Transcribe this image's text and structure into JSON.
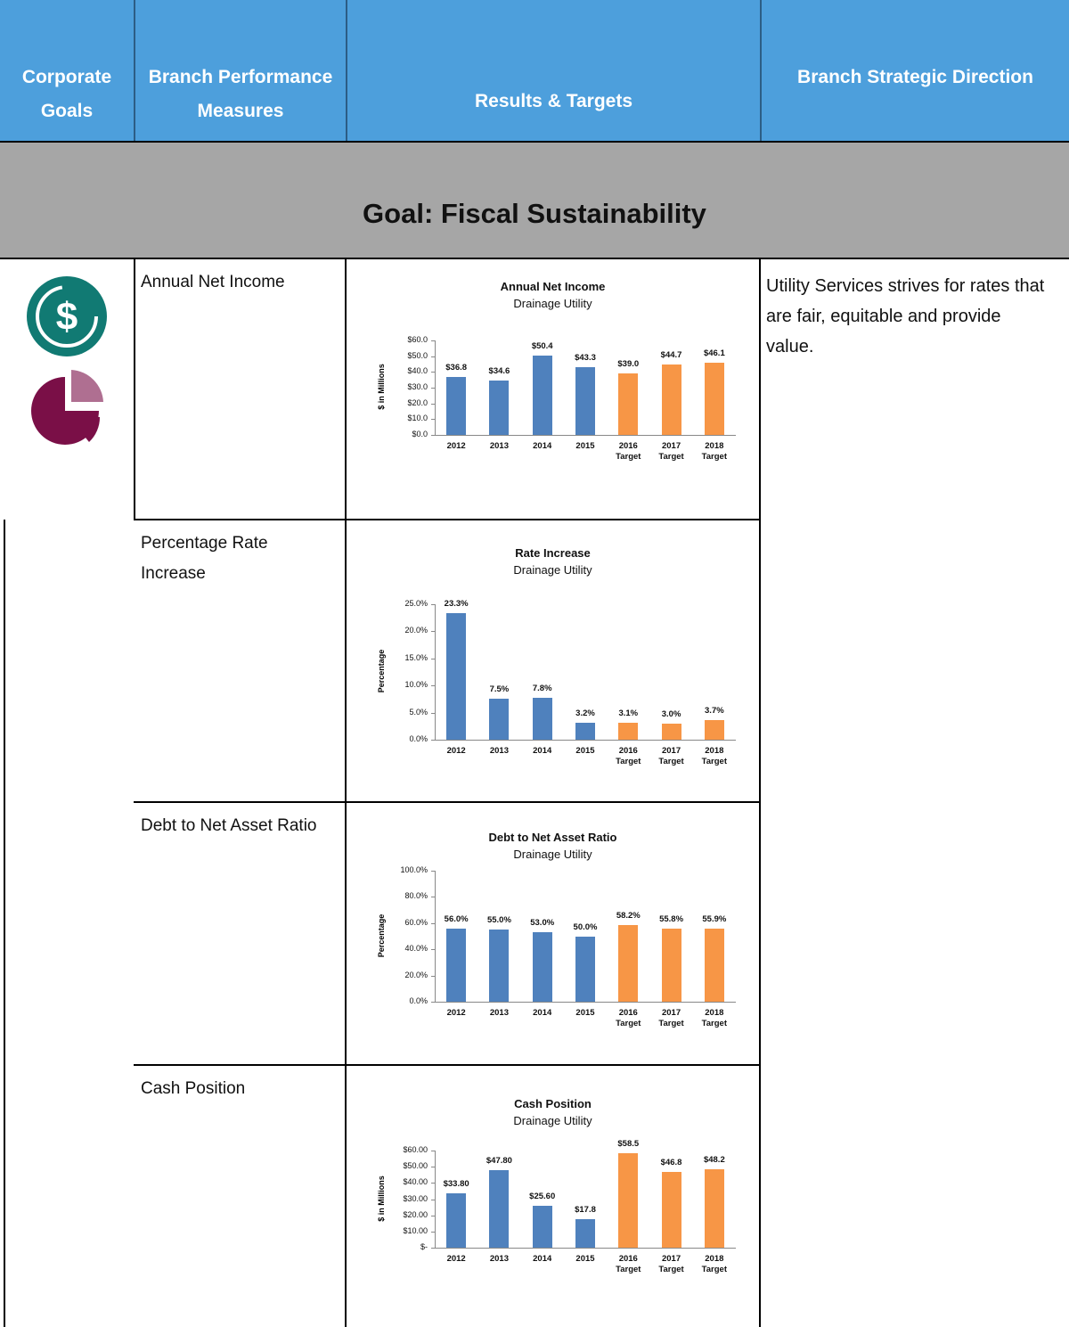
{
  "header": {
    "columns": [
      "Corporate Goals",
      "Branch Performance Measures",
      "Results & Targets",
      "Branch Strategic Direction"
    ]
  },
  "goal": "Goal: Fiscal Sustainability",
  "strategic_direction": "Utility Services strives for rates that are fair, equitable and provide value.",
  "rows": [
    {
      "measure": "Annual Net Income",
      "chart": {
        "type": "bar",
        "title": "Annual Net Income",
        "subtitle": "Drainage Utility",
        "ylabel": "$ in Millions",
        "categories": [
          "2012",
          "2013",
          "2014",
          "2015",
          "2016 Target",
          "2017 Target",
          "2018 Target"
        ],
        "values": [
          36.8,
          34.6,
          50.4,
          43.3,
          39.0,
          44.7,
          46.1
        ],
        "value_labels": [
          "$36.8",
          "$34.6",
          "$50.4",
          "$43.3",
          "$39.0",
          "$44.7",
          "$46.1"
        ],
        "colors": [
          "#4f81bd",
          "#4f81bd",
          "#4f81bd",
          "#4f81bd",
          "#f79646",
          "#f79646",
          "#f79646"
        ],
        "ylim": [
          0,
          60
        ],
        "yticks": [
          {
            "value": 0,
            "label": "$0.0"
          },
          {
            "value": 10,
            "label": "$10.0"
          },
          {
            "value": 20,
            "label": "$20.0"
          },
          {
            "value": 30,
            "label": "$30.0"
          },
          {
            "value": 40,
            "label": "$40.0"
          },
          {
            "value": 50,
            "label": "$50.0"
          },
          {
            "value": 60,
            "label": "$60.0"
          }
        ]
      }
    },
    {
      "measure": "Percentage Rate Increase",
      "chart": {
        "type": "bar",
        "title": "Rate Increase",
        "subtitle": "Drainage Utility",
        "ylabel": "Percentage",
        "categories": [
          "2012",
          "2013",
          "2014",
          "2015",
          "2016 Target",
          "2017 Target",
          "2018 Target"
        ],
        "values": [
          23.3,
          7.5,
          7.8,
          3.2,
          3.1,
          3.0,
          3.7
        ],
        "value_labels": [
          "23.3%",
          "7.5%",
          "7.8%",
          "3.2%",
          "3.1%",
          "3.0%",
          "3.7%"
        ],
        "colors": [
          "#4f81bd",
          "#4f81bd",
          "#4f81bd",
          "#4f81bd",
          "#f79646",
          "#f79646",
          "#f79646"
        ],
        "ylim": [
          0,
          25
        ],
        "yticks": [
          {
            "value": 0,
            "label": "0.0%"
          },
          {
            "value": 5,
            "label": "5.0%"
          },
          {
            "value": 10,
            "label": "10.0%"
          },
          {
            "value": 15,
            "label": "15.0%"
          },
          {
            "value": 20,
            "label": "20.0%"
          },
          {
            "value": 25,
            "label": "25.0%"
          }
        ]
      }
    },
    {
      "measure": "Debt to Net Asset Ratio",
      "chart": {
        "type": "bar",
        "title": "Debt to Net Asset Ratio",
        "subtitle": "Drainage Utility",
        "ylabel": "Percentage",
        "categories": [
          "2012",
          "2013",
          "2014",
          "2015",
          "2016 Target",
          "2017 Target",
          "2018 Target"
        ],
        "values": [
          56.0,
          55.0,
          53.0,
          50.0,
          58.2,
          55.8,
          55.9
        ],
        "value_labels": [
          "56.0%",
          "55.0%",
          "53.0%",
          "50.0%",
          "58.2%",
          "55.8%",
          "55.9%"
        ],
        "colors": [
          "#4f81bd",
          "#4f81bd",
          "#4f81bd",
          "#4f81bd",
          "#f79646",
          "#f79646",
          "#f79646"
        ],
        "ylim": [
          0,
          100
        ],
        "yticks": [
          {
            "value": 0,
            "label": "0.0%"
          },
          {
            "value": 20,
            "label": "20.0%"
          },
          {
            "value": 40,
            "label": "40.0%"
          },
          {
            "value": 60,
            "label": "60.0%"
          },
          {
            "value": 80,
            "label": "80.0%"
          },
          {
            "value": 100,
            "label": "100.0%"
          }
        ]
      }
    },
    {
      "measure": "Cash Position",
      "chart": {
        "type": "bar",
        "title": "Cash Position",
        "subtitle": "Drainage Utility",
        "ylabel": "$ in Millions",
        "categories": [
          "2012",
          "2013",
          "2014",
          "2015",
          "2016 Target",
          "2017 Target",
          "2018 Target"
        ],
        "values": [
          33.8,
          47.8,
          25.6,
          17.8,
          58.5,
          46.8,
          48.2
        ],
        "value_labels": [
          "$33.80",
          "$47.80",
          "$25.60",
          "$17.8",
          "$58.5",
          "$46.8",
          "$48.2"
        ],
        "colors": [
          "#4f81bd",
          "#4f81bd",
          "#4f81bd",
          "#4f81bd",
          "#f79646",
          "#f79646",
          "#f79646"
        ],
        "ylim": [
          0,
          60
        ],
        "yticks": [
          {
            "value": 0,
            "label": "$-"
          },
          {
            "value": 10,
            "label": "$10.00"
          },
          {
            "value": 20,
            "label": "$20.00"
          },
          {
            "value": 30,
            "label": "$30.00"
          },
          {
            "value": 40,
            "label": "$40.00"
          },
          {
            "value": 50,
            "label": "$50.00"
          },
          {
            "value": 60,
            "label": "$60.00"
          }
        ]
      }
    }
  ]
}
